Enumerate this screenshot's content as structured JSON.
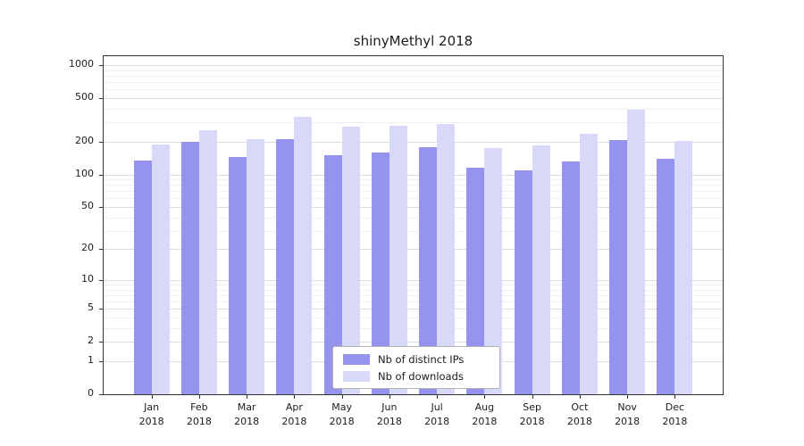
{
  "figure": {
    "background": "#ffffff"
  },
  "chart_data": {
    "type": "bar",
    "title": "shinyMethyl 2018",
    "categories": [
      "Jan 2018",
      "Feb 2018",
      "Mar 2018",
      "Apr 2018",
      "May 2018",
      "Jun 2018",
      "Jul 2018",
      "Aug 2018",
      "Sep 2018",
      "Oct 2018",
      "Nov 2018",
      "Dec 2018"
    ],
    "series": [
      {
        "name": "Nb of distinct IPs",
        "color": "#9494ee",
        "values": [
          135,
          200,
          145,
          210,
          150,
          160,
          178,
          115,
          110,
          132,
          205,
          140
        ]
      },
      {
        "name": "Nb of downloads",
        "color": "#d8d8f8",
        "values": [
          190,
          255,
          210,
          335,
          275,
          278,
          288,
          175,
          185,
          235,
          395,
          202
        ]
      }
    ],
    "xlabel": "",
    "ylabel": "",
    "y_ticks": [
      0,
      1,
      2,
      5,
      10,
      20,
      50,
      100,
      200,
      500,
      1000
    ],
    "y_scale": "log1p",
    "ylim": [
      0,
      1200
    ],
    "grid": true,
    "legend_position": "lower center"
  }
}
